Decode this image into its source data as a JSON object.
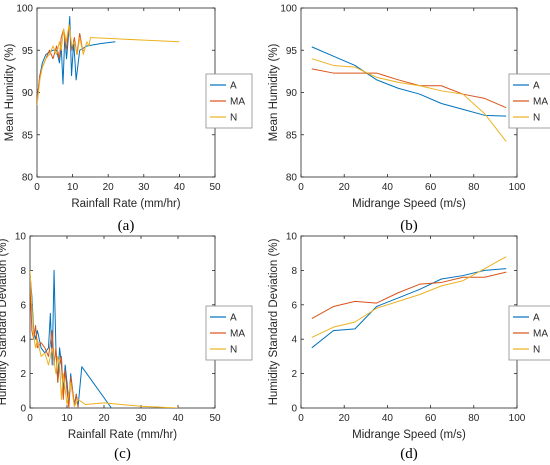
{
  "colors": {
    "A": "#0072BD",
    "MA": "#D95319",
    "N": "#EDB120",
    "axis": "#262626",
    "legend_border": "#8c8c8c"
  },
  "chart_data": [
    {
      "type": "line",
      "caption": "(a)",
      "xlabel": "Rainfall Rate (mm/hr)",
      "ylabel": "Mean Humidity (%)",
      "xlim": [
        0,
        50
      ],
      "ylim": [
        80,
        100
      ],
      "xticks": [
        0,
        10,
        20,
        30,
        40,
        50
      ],
      "yticks": [
        80,
        85,
        90,
        95,
        100
      ],
      "grid": false,
      "legend_position": "outside-right",
      "series": [
        {
          "name": "A",
          "x": [
            0,
            0.8,
            1.5,
            2.5,
            3.5,
            4.5,
            5.5,
            6.3,
            6.8,
            7.3,
            7.8,
            8.3,
            8.8,
            9.2,
            9.7,
            10.3,
            11,
            12,
            14,
            18,
            22
          ],
          "y": [
            89,
            92,
            93.5,
            94.5,
            94.8,
            95,
            95,
            93.5,
            95.5,
            91,
            96.5,
            94,
            96.5,
            99,
            92,
            96,
            91.5,
            95,
            95.5,
            95.8,
            96
          ]
        },
        {
          "name": "MA",
          "x": [
            0,
            0.8,
            1.5,
            2.5,
            3.5,
            4.5,
            5.5,
            6.3,
            6.8,
            7.5,
            8.2,
            9,
            9.8,
            10.5,
            11.2,
            12,
            12.8,
            13.5
          ],
          "y": [
            89,
            92,
            93,
            94,
            95,
            94,
            95.5,
            94,
            96.5,
            97.5,
            95,
            98,
            95,
            96.5,
            94.5,
            97,
            95,
            95
          ]
        },
        {
          "name": "N",
          "x": [
            0,
            0.8,
            1.5,
            2.5,
            3.5,
            4.5,
            5.5,
            6.3,
            6.8,
            7.5,
            8.2,
            9,
            9.8,
            10.5,
            11.3,
            12,
            13,
            14,
            14.6,
            15,
            20,
            30,
            40
          ],
          "y": [
            88.5,
            91.5,
            93,
            94,
            94.5,
            95.5,
            94.5,
            96,
            95,
            97.5,
            96,
            98,
            95.5,
            96,
            94.5,
            96.5,
            94.5,
            96,
            95.5,
            96.5,
            96.4,
            96.2,
            96
          ]
        }
      ]
    },
    {
      "type": "line",
      "caption": "(b)",
      "xlabel": "Midrange Speed (m/s)",
      "ylabel": "Mean Humidity (%)",
      "xlim": [
        0,
        100
      ],
      "ylim": [
        80,
        100
      ],
      "xticks": [
        0,
        20,
        40,
        60,
        80,
        100
      ],
      "yticks": [
        80,
        85,
        90,
        95,
        100
      ],
      "grid": false,
      "legend_position": "outside-right",
      "series": [
        {
          "name": "A",
          "x": [
            5,
            15,
            25,
            35,
            45,
            55,
            65,
            75,
            85,
            95
          ],
          "y": [
            95.4,
            94.3,
            93.2,
            91.5,
            90.5,
            89.8,
            88.7,
            88,
            87.3,
            87.2
          ]
        },
        {
          "name": "MA",
          "x": [
            5,
            15,
            25,
            35,
            45,
            55,
            65,
            75,
            85,
            95
          ],
          "y": [
            92.8,
            92.3,
            92.3,
            92.3,
            91.5,
            90.8,
            90.8,
            89.8,
            89.3,
            88.2
          ]
        },
        {
          "name": "N",
          "x": [
            5,
            15,
            25,
            35,
            45,
            55,
            65,
            75,
            85,
            95
          ],
          "y": [
            94,
            93.2,
            93,
            91.8,
            91.2,
            90.8,
            90.2,
            89.8,
            87.5,
            84.2
          ]
        }
      ]
    },
    {
      "type": "line",
      "caption": "(c)",
      "xlabel": "Rainfall Rate (mm/hr)",
      "ylabel": "Humidity Standard Deviation (%)",
      "xlim": [
        0,
        50
      ],
      "ylim": [
        0,
        10
      ],
      "xticks": [
        0,
        10,
        20,
        30,
        40,
        50
      ],
      "yticks": [
        0,
        2,
        4,
        6,
        8,
        10
      ],
      "grid": false,
      "legend_position": "outside-right",
      "series": [
        {
          "name": "A",
          "x": [
            0,
            0.5,
            1,
            1.5,
            2,
            3,
            4,
            5,
            5.5,
            6,
            6.5,
            7,
            7.5,
            8,
            8.5,
            9,
            9.5,
            10,
            10.5,
            11,
            12,
            12.5,
            13,
            14,
            22
          ],
          "y": [
            7.8,
            6.5,
            4.5,
            4,
            4.5,
            3.5,
            3.2,
            3.5,
            5.5,
            2.5,
            8,
            3.5,
            1.5,
            3.5,
            2.5,
            1,
            2.5,
            1.5,
            0.2,
            2,
            0.1,
            0.8,
            0.1,
            2.4,
            0
          ]
        },
        {
          "name": "MA",
          "x": [
            0,
            0.5,
            1,
            1.5,
            2,
            3,
            4,
            5,
            6,
            6.5,
            7,
            7.5,
            8,
            8.5,
            9,
            9.5,
            10,
            10.5,
            11,
            12,
            12.5,
            13
          ],
          "y": [
            7.5,
            4.5,
            4,
            4.8,
            3.5,
            3.8,
            3.5,
            3,
            4.5,
            2.5,
            3.5,
            1.5,
            2.5,
            3,
            0.5,
            2.2,
            1,
            0,
            1.8,
            0.2,
            0.8,
            0
          ]
        },
        {
          "name": "N",
          "x": [
            0,
            0.5,
            1,
            1.5,
            2,
            3,
            4,
            5,
            6,
            7,
            7.5,
            8,
            8.5,
            9,
            10,
            11,
            12,
            13,
            15,
            20,
            30,
            40
          ],
          "y": [
            8,
            6,
            4.2,
            3.5,
            4,
            3,
            3.2,
            2.5,
            3.5,
            2,
            3,
            2.5,
            0.5,
            2,
            0.2,
            1.5,
            0.1,
            0.5,
            0.2,
            0.3,
            0.1,
            0
          ]
        }
      ]
    },
    {
      "type": "line",
      "caption": "(d)",
      "xlabel": "Midrange Speed (m/s)",
      "ylabel": "Humidity Standard Deviation (%)",
      "xlim": [
        0,
        100
      ],
      "ylim": [
        0,
        10
      ],
      "xticks": [
        0,
        20,
        40,
        60,
        80,
        100
      ],
      "yticks": [
        0,
        2,
        4,
        6,
        8,
        10
      ],
      "grid": false,
      "legend_position": "outside-right",
      "series": [
        {
          "name": "A",
          "x": [
            5,
            15,
            25,
            35,
            45,
            55,
            65,
            75,
            85,
            95
          ],
          "y": [
            3.5,
            4.5,
            4.6,
            5.9,
            6.4,
            6.9,
            7.5,
            7.7,
            8,
            8.1
          ]
        },
        {
          "name": "MA",
          "x": [
            5,
            15,
            25,
            35,
            45,
            55,
            65,
            75,
            85,
            95
          ],
          "y": [
            5.2,
            5.9,
            6.2,
            6.1,
            6.7,
            7.2,
            7.3,
            7.6,
            7.6,
            7.9
          ]
        },
        {
          "name": "N",
          "x": [
            5,
            15,
            25,
            35,
            45,
            55,
            65,
            75,
            85,
            95
          ],
          "y": [
            4.1,
            4.7,
            5,
            5.8,
            6.2,
            6.6,
            7.1,
            7.4,
            8.1,
            8.8
          ]
        }
      ]
    }
  ]
}
